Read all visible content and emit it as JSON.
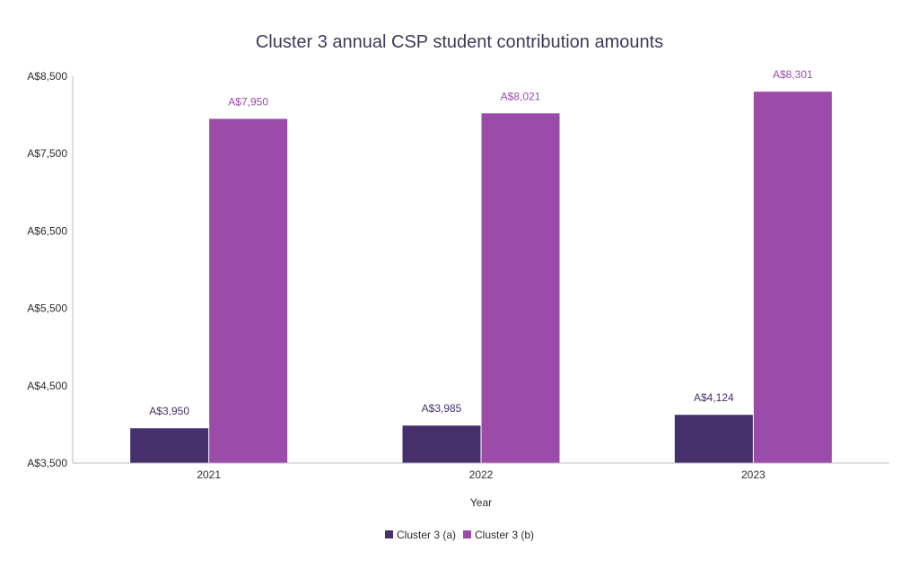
{
  "chart_data": {
    "type": "bar",
    "title": "Cluster 3 annual CSP student contribution amounts",
    "xlabel": "Year",
    "ylabel": "",
    "categories": [
      "2021",
      "2022",
      "2023"
    ],
    "ylim": [
      3500,
      8500
    ],
    "yticks": [
      3500,
      4500,
      5500,
      6500,
      7500,
      8500
    ],
    "ytick_labels": [
      "A$3,500",
      "A$4,500",
      "A$5,500",
      "A$6,500",
      "A$7,500",
      "A$8,500"
    ],
    "grid": false,
    "legend_position": "bottom",
    "series": [
      {
        "name": "Cluster 3 (a)",
        "color": "#45306b",
        "values": [
          3950,
          3985,
          4124
        ],
        "labels": [
          "A$3,950",
          "A$3,985",
          "A$4,124"
        ]
      },
      {
        "name": "Cluster 3 (b)",
        "color": "#9b4ca8",
        "values": [
          7950,
          8021,
          8301
        ],
        "labels": [
          "A$7,950",
          "A$8,021",
          "A$8,301"
        ]
      }
    ]
  }
}
